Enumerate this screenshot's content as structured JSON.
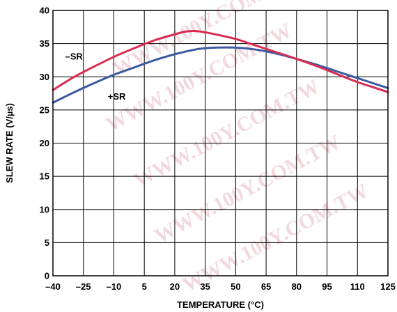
{
  "chart_data": {
    "type": "line",
    "title": "",
    "xlabel": "TEMPERATURE (°C)",
    "ylabel": "SLEW RATE (V/µs)",
    "xlim": [
      -40,
      125
    ],
    "ylim": [
      0,
      40
    ],
    "x_ticks": [
      "–40",
      "–25",
      "–10",
      "5",
      "20",
      "35",
      "50",
      "65",
      "80",
      "95",
      "110",
      "125"
    ],
    "x_tick_values": [
      -40,
      -25,
      -10,
      5,
      20,
      35,
      50,
      65,
      80,
      95,
      110,
      125
    ],
    "y_ticks": [
      "0",
      "5",
      "10",
      "15",
      "20",
      "25",
      "30",
      "35",
      "40"
    ],
    "y_tick_values": [
      0,
      5,
      10,
      15,
      20,
      25,
      30,
      35,
      40
    ],
    "grid": true,
    "series": [
      {
        "name": "–SR",
        "color": "#d92c52",
        "x": [
          -40,
          -30,
          -20,
          -10,
          0,
          10,
          20,
          25,
          30,
          35,
          40,
          50,
          60,
          70,
          80,
          90,
          100,
          110,
          120,
          125
        ],
        "y": [
          28.0,
          29.9,
          31.5,
          33.0,
          34.3,
          35.5,
          36.4,
          36.8,
          36.9,
          36.7,
          36.4,
          35.7,
          34.7,
          33.7,
          32.7,
          31.6,
          30.4,
          29.2,
          28.2,
          27.7
        ]
      },
      {
        "name": "+SR",
        "color": "#3a5aa0",
        "x": [
          -40,
          -30,
          -20,
          -10,
          0,
          10,
          20,
          30,
          35,
          40,
          50,
          60,
          70,
          80,
          90,
          100,
          110,
          120,
          125
        ],
        "y": [
          26.1,
          27.6,
          29.0,
          30.3,
          31.4,
          32.5,
          33.4,
          34.1,
          34.3,
          34.4,
          34.4,
          34.1,
          33.5,
          32.7,
          31.8,
          30.8,
          29.8,
          28.8,
          28.3
        ]
      }
    ],
    "labels": {
      "minus_sr": "–SR",
      "plus_sr": "+SR"
    }
  },
  "watermark": "WWW.100Y.COM.TW"
}
